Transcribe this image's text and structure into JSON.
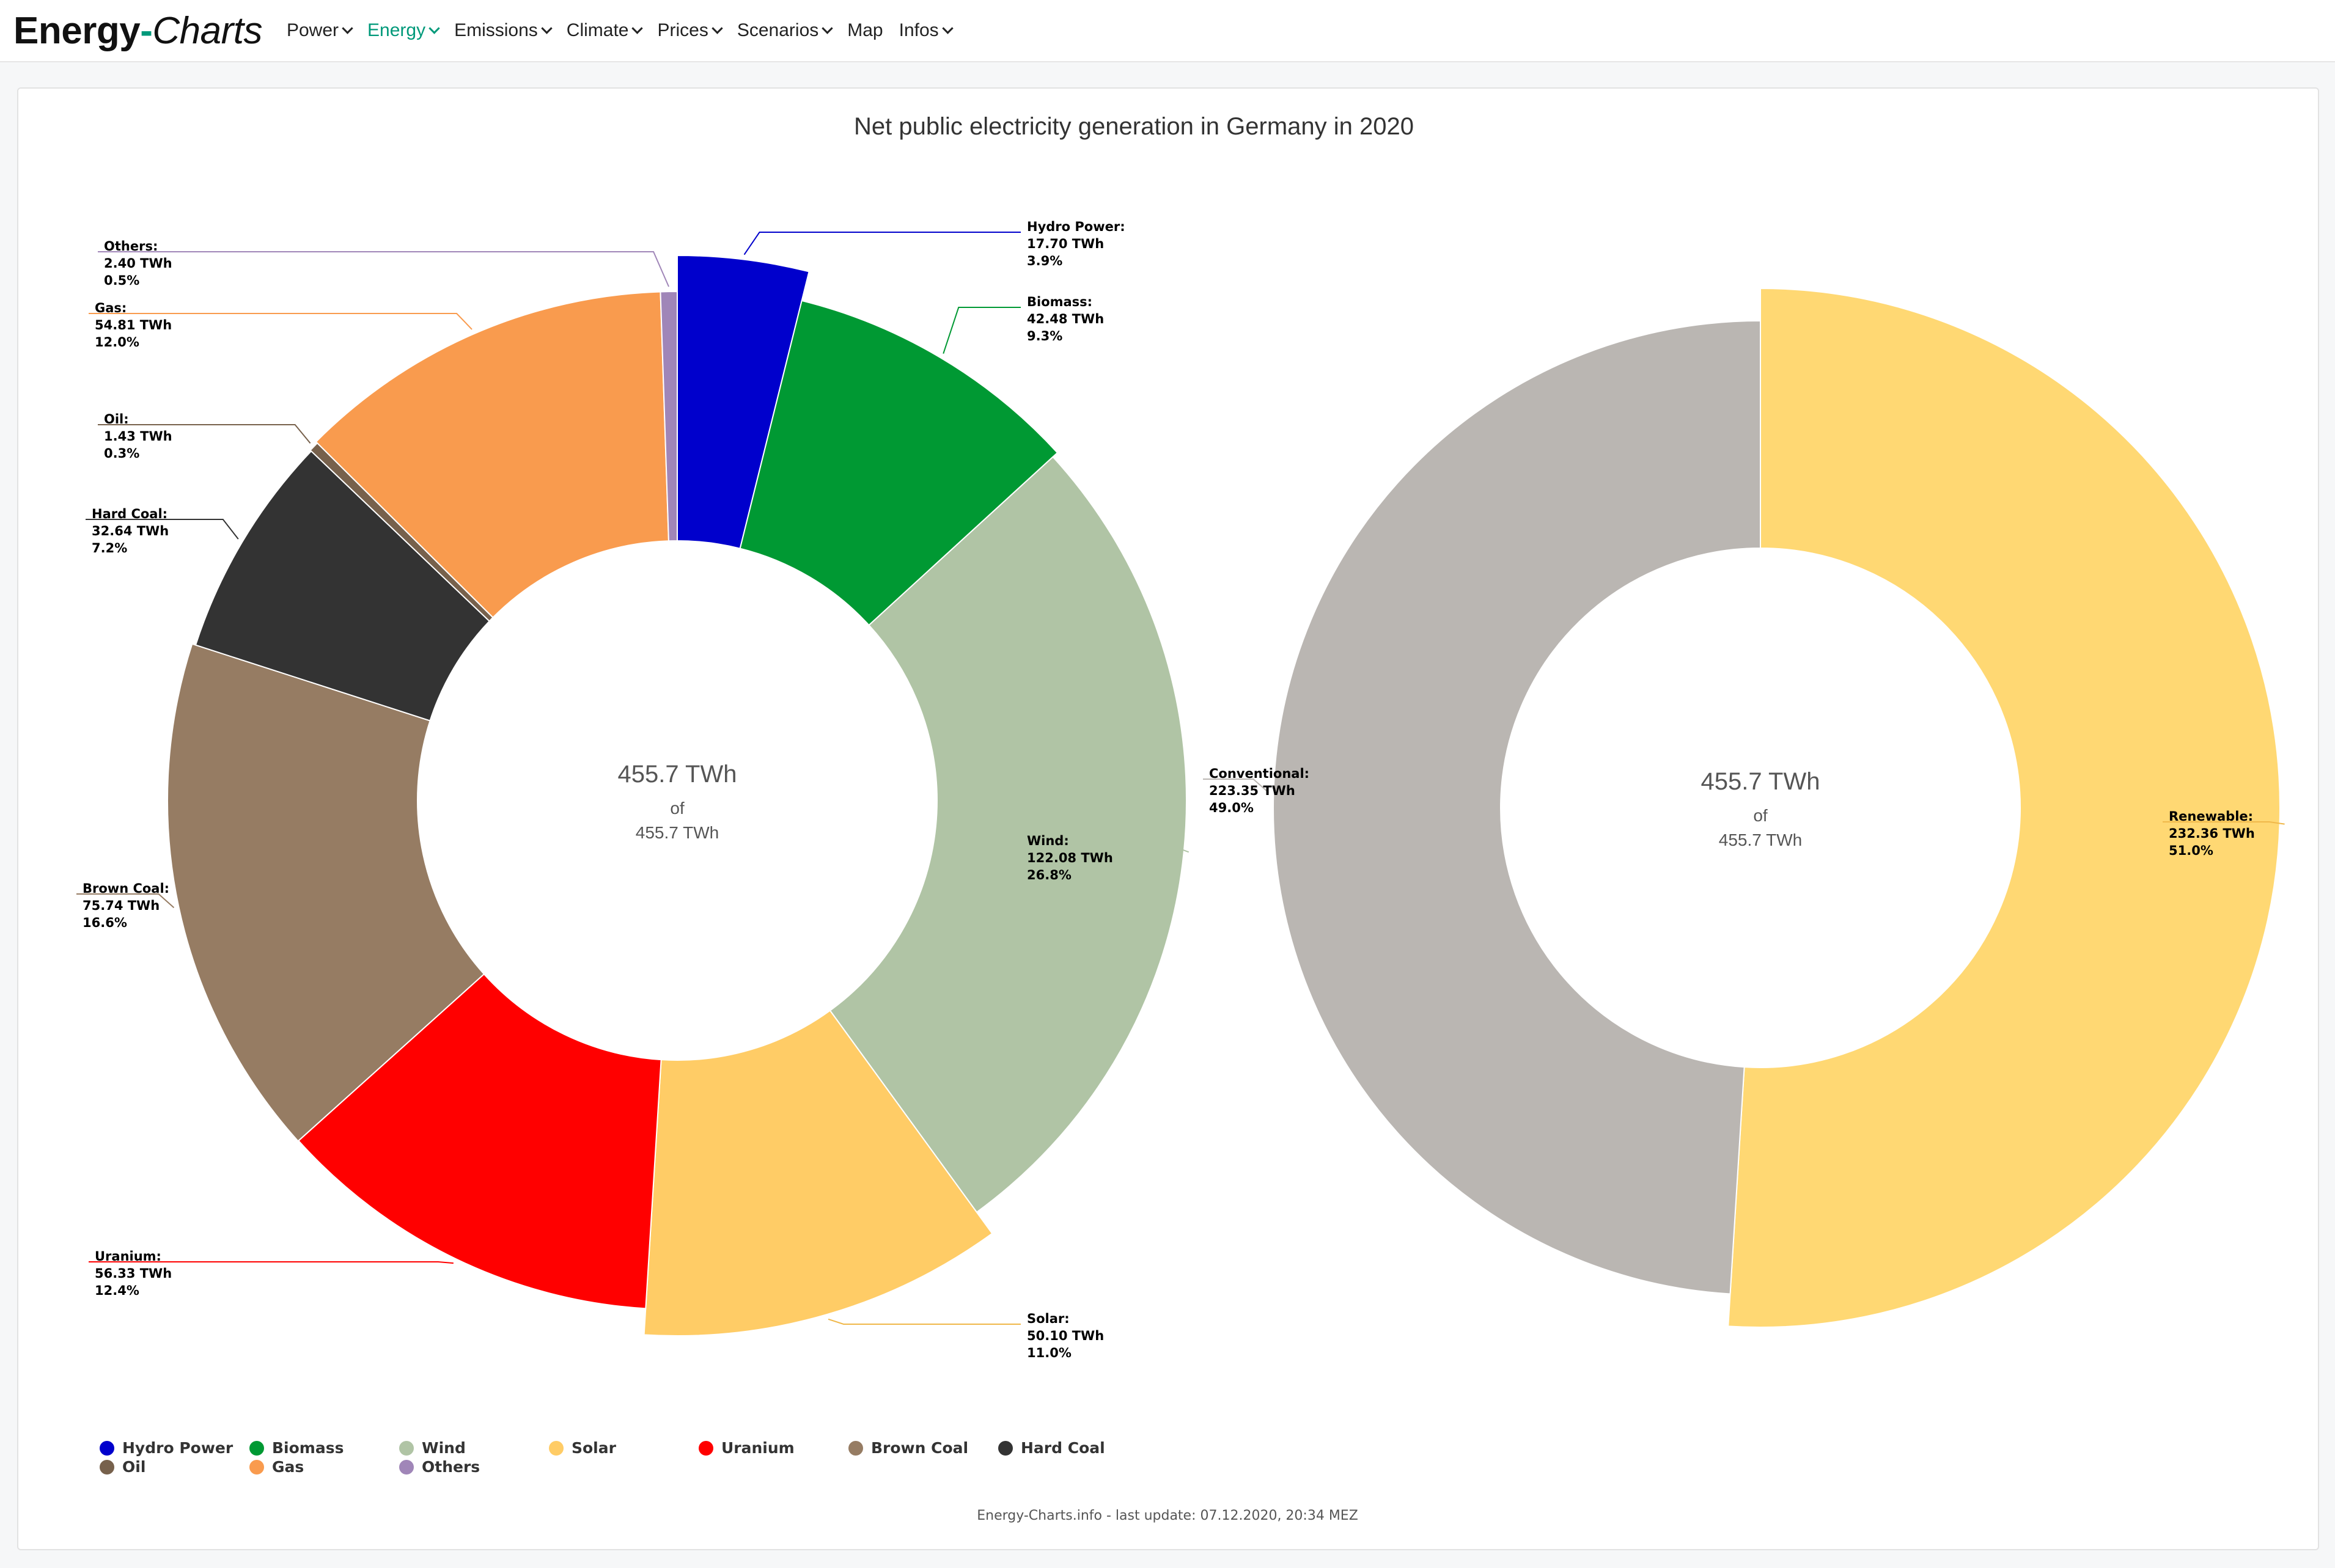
{
  "nav": {
    "brand_part1": "Energy",
    "brand_dash": "-",
    "brand_part2": "Charts",
    "items": [
      {
        "label": "Power",
        "active": false,
        "dropdown": true
      },
      {
        "label": "Energy",
        "active": true,
        "dropdown": true
      },
      {
        "label": "Emissions",
        "active": false,
        "dropdown": true
      },
      {
        "label": "Climate",
        "active": false,
        "dropdown": true
      },
      {
        "label": "Prices",
        "active": false,
        "dropdown": true
      },
      {
        "label": "Scenarios",
        "active": false,
        "dropdown": true
      },
      {
        "label": "Map",
        "active": false,
        "dropdown": false
      },
      {
        "label": "Infos",
        "active": false,
        "dropdown": true
      }
    ]
  },
  "chart": {
    "title": "Net public electricity generation in Germany in 2020",
    "footer": "Energy-Charts.info - last update: 07.12.2020, 20:34 MEZ"
  },
  "chart_data": [
    {
      "type": "pie",
      "donut": true,
      "unit": "TWh",
      "center_value": "455.7 TWh",
      "center_of": "of",
      "center_total": "455.7 TWh",
      "slices": [
        {
          "name": "Hydro Power",
          "value": 17.7,
          "value_label": "17.70 TWh",
          "percent": "3.9%",
          "color": "#0000cc"
        },
        {
          "name": "Biomass",
          "value": 42.48,
          "value_label": "42.48 TWh",
          "percent": "9.3%",
          "color": "#009933"
        },
        {
          "name": "Wind",
          "value": 122.08,
          "value_label": "122.08 TWh",
          "percent": "26.8%",
          "color": "#b0c4a5"
        },
        {
          "name": "Solar",
          "value": 50.1,
          "value_label": "50.10 TWh",
          "percent": "11.0%",
          "color": "#ffcc66"
        },
        {
          "name": "Uranium",
          "value": 56.33,
          "value_label": "56.33 TWh",
          "percent": "12.4%",
          "color": "#ff0000"
        },
        {
          "name": "Brown Coal",
          "value": 75.74,
          "value_label": "75.74 TWh",
          "percent": "16.6%",
          "color": "#967c63"
        },
        {
          "name": "Hard Coal",
          "value": 32.64,
          "value_label": "32.64 TWh",
          "percent": "7.2%",
          "color": "#333333"
        },
        {
          "name": "Oil",
          "value": 1.43,
          "value_label": "1.43 TWh",
          "percent": "0.3%",
          "color": "#77614c"
        },
        {
          "name": "Gas",
          "value": 54.81,
          "value_label": "54.81 TWh",
          "percent": "12.0%",
          "color": "#f99b4e"
        },
        {
          "name": "Others",
          "value": 2.4,
          "value_label": "2.40 TWh",
          "percent": "0.5%",
          "color": "#a086b8"
        }
      ]
    },
    {
      "type": "pie",
      "donut": true,
      "unit": "TWh",
      "center_value": "455.7 TWh",
      "center_of": "of",
      "center_total": "455.7 TWh",
      "slices": [
        {
          "name": "Renewable",
          "value": 232.36,
          "value_label": "232.36 TWh",
          "percent": "51.0%",
          "color": "#ffd873"
        },
        {
          "name": "Conventional",
          "value": 223.35,
          "value_label": "223.35 TWh",
          "percent": "49.0%",
          "color": "#bab6b2"
        }
      ]
    }
  ]
}
